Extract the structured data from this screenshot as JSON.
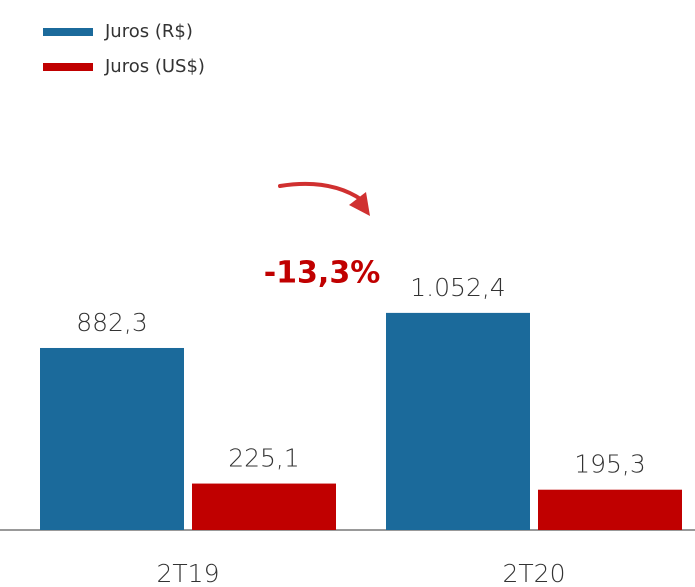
{
  "chart_data": {
    "type": "bar",
    "categories": [
      "2T19",
      "2T20"
    ],
    "series": [
      {
        "name": "Juros (R$)",
        "color": "#1b6a9b",
        "values": [
          882.3,
          1052.4
        ],
        "value_labels": [
          "882,3",
          "1.052,4"
        ]
      },
      {
        "name": "Juros (US$)",
        "color": "#c00000",
        "values": [
          225.1,
          195.3
        ],
        "value_labels": [
          "225,1",
          "195,3"
        ]
      }
    ],
    "annotation": "-13,3%"
  }
}
